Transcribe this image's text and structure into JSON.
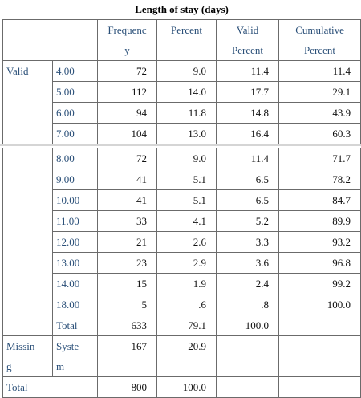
{
  "title": "Length of stay (days)",
  "headers": [
    "Frequency",
    "Percent",
    "Valid Percent",
    "Cumulative Percent"
  ],
  "header_lines": [
    [
      "Frequenc",
      "y"
    ],
    [
      "Percent",
      ""
    ],
    [
      "Valid",
      "Percent"
    ],
    [
      "Cumulative",
      "Percent"
    ]
  ],
  "valid_label": "Valid",
  "missing_label_lines": [
    "Missin",
    "g"
  ],
  "system_label_lines": [
    "Syste",
    "m"
  ],
  "rows_top": [
    {
      "value": "4.00",
      "freq": "72",
      "pct": "9.0",
      "valid": "11.4",
      "cum": "11.4"
    },
    {
      "value": "5.00",
      "freq": "112",
      "pct": "14.0",
      "valid": "17.7",
      "cum": "29.1"
    },
    {
      "value": "6.00",
      "freq": "94",
      "pct": "11.8",
      "valid": "14.8",
      "cum": "43.9"
    },
    {
      "value": "7.00",
      "freq": "104",
      "pct": "13.0",
      "valid": "16.4",
      "cum": "60.3"
    }
  ],
  "rows_bottom": [
    {
      "value": "8.00",
      "freq": "72",
      "pct": "9.0",
      "valid": "11.4",
      "cum": "71.7"
    },
    {
      "value": "9.00",
      "freq": "41",
      "pct": "5.1",
      "valid": "6.5",
      "cum": "78.2"
    },
    {
      "value": "10.00",
      "freq": "41",
      "pct": "5.1",
      "valid": "6.5",
      "cum": "84.7"
    },
    {
      "value": "11.00",
      "freq": "33",
      "pct": "4.1",
      "valid": "5.2",
      "cum": "89.9"
    },
    {
      "value": "12.00",
      "freq": "21",
      "pct": "2.6",
      "valid": "3.3",
      "cum": "93.2"
    },
    {
      "value": "13.00",
      "freq": "23",
      "pct": "2.9",
      "valid": "3.6",
      "cum": "96.8"
    },
    {
      "value": "14.00",
      "freq": "15",
      "pct": "1.9",
      "valid": "2.4",
      "cum": "99.2"
    },
    {
      "value": "18.00",
      "freq": "5",
      "pct": ".6",
      "valid": ".8",
      "cum": "100.0"
    }
  ],
  "valid_total": {
    "label": "Total",
    "freq": "633",
    "pct": "79.1",
    "valid": "100.0"
  },
  "missing_row": {
    "freq": "167",
    "pct": "20.9"
  },
  "grand_total": {
    "label": "Total",
    "freq": "800",
    "pct": "100.0"
  }
}
